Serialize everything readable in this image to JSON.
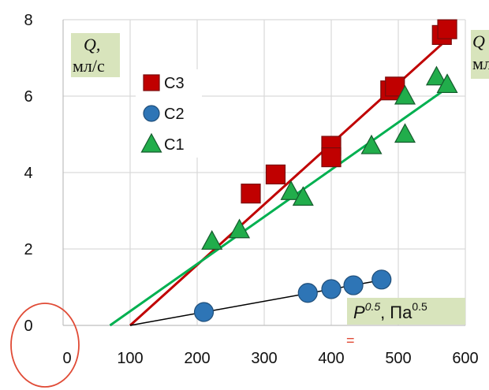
{
  "chart_data": {
    "type": "scatter",
    "xlim": [
      0,
      600
    ],
    "ylim": [
      0,
      8
    ],
    "x_ticks": [
      0,
      100,
      200,
      300,
      400,
      500,
      600
    ],
    "y_ticks": [
      0,
      2,
      4,
      6,
      8
    ],
    "x_tick_labels": [
      "0",
      "100",
      "200",
      "300",
      "400",
      "500",
      "600"
    ],
    "y_tick_labels": [
      "0",
      "2",
      "4",
      "6",
      "8"
    ],
    "grid": true,
    "legend_position": "upper-left",
    "ylabel": {
      "q": "Q,",
      "unit": "мл/с"
    },
    "xlabel": {
      "p": "P",
      "p_exp": "0.5",
      "sep": ",",
      "unit": "Па",
      "unit_exp": "0.5"
    },
    "series": [
      {
        "name": "C3",
        "marker": "square",
        "color": "#c00000",
        "line_color": "#c00000",
        "points": [
          [
            280,
            3.45
          ],
          [
            317,
            3.95
          ],
          [
            400,
            4.7
          ],
          [
            400,
            4.4
          ],
          [
            488,
            6.15
          ],
          [
            495,
            6.25
          ],
          [
            565,
            7.6
          ],
          [
            573,
            7.75
          ]
        ],
        "fit": [
          [
            100,
            0
          ],
          [
            580,
            7.6
          ]
        ]
      },
      {
        "name": "C2",
        "marker": "circle",
        "color": "#2e75b6",
        "line_color": "#000000",
        "points": [
          [
            210,
            0.35
          ],
          [
            365,
            0.85
          ],
          [
            400,
            0.95
          ],
          [
            433,
            1.05
          ],
          [
            475,
            1.2
          ]
        ],
        "fit": [
          [
            100,
            0
          ],
          [
            480,
            1.2
          ]
        ]
      },
      {
        "name": "C1",
        "marker": "triangle",
        "color": "#21ad4b",
        "line_color": "#00b050",
        "points": [
          [
            222,
            2.2
          ],
          [
            263,
            2.5
          ],
          [
            340,
            3.5
          ],
          [
            358,
            3.35
          ],
          [
            460,
            4.7
          ],
          [
            510,
            5.0
          ],
          [
            510,
            6.0
          ],
          [
            557,
            6.5
          ],
          [
            573,
            6.3
          ]
        ],
        "fit": [
          [
            70,
            0
          ],
          [
            580,
            6.3
          ]
        ]
      }
    ]
  },
  "right_edge_fragments": {
    "q": "Q",
    "unit": "мл"
  },
  "annotations": {
    "equals_mark": "="
  }
}
